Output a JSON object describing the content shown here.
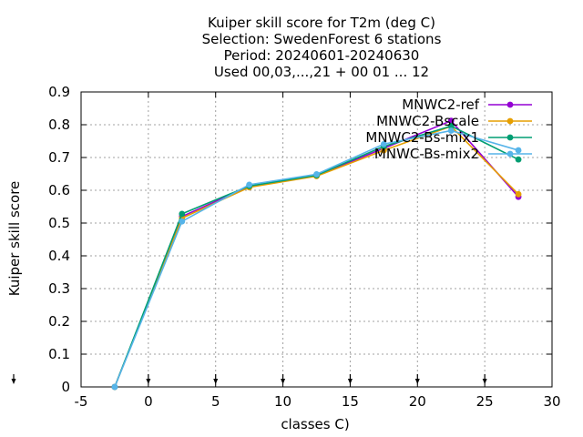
{
  "chart_data": {
    "type": "line",
    "title_lines": [
      "Kuiper skill score  for T2m (deg C)",
      "Selection: SwedenForest      6 stations",
      "Period: 20240601-20240630",
      "Used 00,03,...,21 + 00 01 ... 12"
    ],
    "xlabel": "classes C)",
    "ylabel": "Kuiper skill score",
    "xlim": [
      -5,
      30
    ],
    "ylim": [
      0,
      0.9
    ],
    "xticks": [
      -5,
      0,
      5,
      10,
      15,
      20,
      25,
      30
    ],
    "yticks": [
      0,
      0.1,
      0.2,
      0.3,
      0.4,
      0.5,
      0.6,
      0.7,
      0.8,
      0.9
    ],
    "xtick_labels": [
      "-5",
      "0",
      "5",
      "10",
      "15",
      "20",
      "25",
      "30"
    ],
    "ytick_labels": [
      "0",
      "0.1",
      "0.2",
      "0.3",
      "0.4",
      "0.5",
      "0.6",
      "0.7",
      "0.8",
      "0.9"
    ],
    "grid": true,
    "legend_position": "top-right",
    "x": [
      -2.5,
      2.5,
      7.5,
      12.5,
      17.5,
      22.5,
      27.5
    ],
    "series": [
      {
        "name": "MNWC2-ref",
        "color": "#9400d3",
        "values": [
          0,
          0.52,
          0.612,
          0.645,
          0.728,
          0.812,
          0.58
        ]
      },
      {
        "name": "MNWC2-Bscale",
        "color": "#e69f00",
        "values": [
          0,
          0.515,
          0.609,
          0.643,
          0.722,
          0.795,
          0.588
        ]
      },
      {
        "name": "MNWC2-Bs-mix1",
        "color": "#009e73",
        "values": [
          0,
          0.528,
          0.613,
          0.646,
          0.734,
          0.796,
          0.694
        ]
      },
      {
        "name": "MNWC-Bs-mix2",
        "color": "#56b4e9",
        "values": [
          0,
          0.505,
          0.617,
          0.649,
          0.741,
          0.782,
          0.722
        ]
      }
    ],
    "bottom_arrow_markers_x": [
      -5,
      0,
      5,
      10,
      15,
      20,
      25
    ]
  }
}
